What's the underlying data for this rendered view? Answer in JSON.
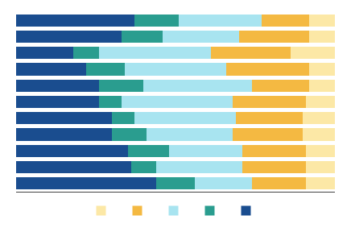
{
  "chart_data": {
    "type": "bar",
    "orientation": "horizontal",
    "stacked": true,
    "categories": [
      null,
      null,
      null,
      null,
      null,
      null,
      null,
      null,
      null,
      null,
      null
    ],
    "series": [
      {
        "color": "#1a4d8f",
        "values": [
          37,
          33,
          18,
          22,
          26,
          26,
          30,
          30,
          35,
          36,
          44
        ]
      },
      {
        "color": "#2a9d8f",
        "values": [
          14,
          13,
          8,
          12,
          14,
          7,
          7,
          11,
          13,
          8,
          12
        ]
      },
      {
        "color": "#a8e4f0",
        "values": [
          26,
          24,
          35,
          32,
          34,
          35,
          32,
          27,
          23,
          27,
          18
        ]
      },
      {
        "color": "#f4b942",
        "values": [
          15,
          22,
          25,
          26,
          18,
          23,
          21,
          22,
          20,
          20,
          17
        ]
      },
      {
        "color": "#fce8a6",
        "values": [
          8,
          8,
          14,
          8,
          8,
          9,
          10,
          10,
          9,
          9,
          9
        ]
      }
    ],
    "xlim": [
      0,
      100
    ],
    "grid": false,
    "legend": "bottom",
    "tick_labels": false
  }
}
